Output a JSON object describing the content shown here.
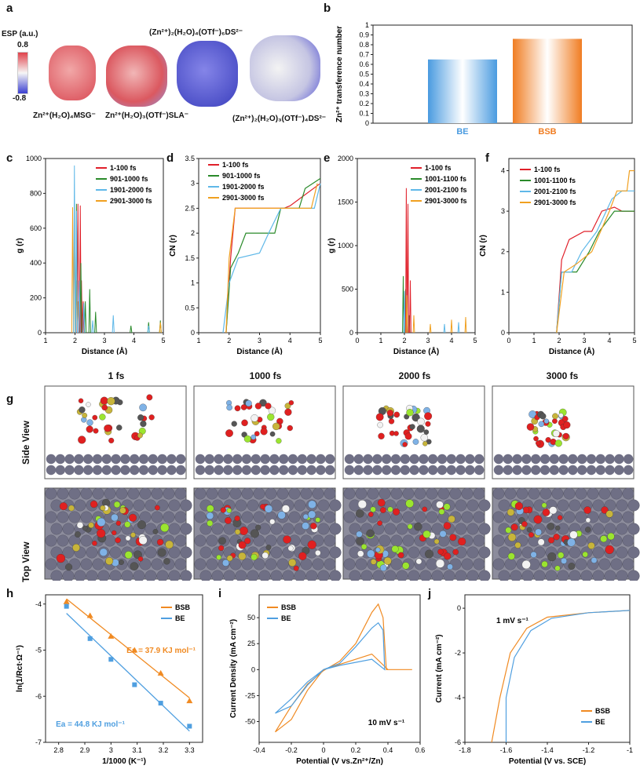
{
  "panel_letters": {
    "a": "a",
    "b": "b",
    "c": "c",
    "d": "d",
    "e": "e",
    "f": "f",
    "g": "g",
    "h": "h",
    "i": "i",
    "j": "j"
  },
  "panel_a": {
    "esp_title": "ESP (a.u.)",
    "esp_max": "0.8",
    "esp_min": "-0.8",
    "mol1": "Zn²⁺(H₂O)₄MSG⁻",
    "mol2": "Zn²⁺(H₂O)₃(OTf⁻)SLA⁻",
    "mol3": "(Zn²⁺)₂(H₂O)₄(OTf⁻)₆DS²⁻",
    "mol4": "(Zn²⁺)₂(H₂O)₃(OTf⁻)₄DS²⁻",
    "colors": {
      "positive": "#e0424b",
      "negative": "#3b3fd1",
      "neutral": "#f2f2f2"
    }
  },
  "panel_g": {
    "times": [
      "1 fs",
      "1000 fs",
      "2000 fs",
      "3000 fs"
    ],
    "side_view": "Side View",
    "top_view": "Top View",
    "colors": {
      "zinc": "#6f6f85",
      "oxygen": "#e02020",
      "sulfur": "#c8b53a",
      "carbon": "#555555",
      "fluorine": "#7fb2e6",
      "hydrogen": "#f2f2f2",
      "nitrogen": "#9be52f"
    }
  },
  "panel_h_annot": {
    "bsb": "Ea = 37.9 KJ mol⁻¹",
    "be": "Ea = 44.8 KJ mol⁻¹"
  },
  "panel_i_annot": "10 mV s⁻¹",
  "panel_j_annot": "1 mV s⁻¹",
  "chart_data": [
    {
      "id": "b",
      "type": "bar",
      "categories": [
        "BE",
        "BSB"
      ],
      "values": [
        0.65,
        0.86
      ],
      "ylabel": "Zn²⁺ transference number",
      "ylim": [
        0,
        1.0
      ],
      "yticks": [
        0,
        0.1,
        0.2,
        0.3,
        0.4,
        0.5,
        0.6,
        0.7,
        0.8,
        0.9,
        1.0
      ],
      "colors": [
        "#4a9be0",
        "#f07d22"
      ]
    },
    {
      "id": "c",
      "type": "line",
      "xlabel": "Distance (Å)",
      "ylabel": "g (r)",
      "xlim": [
        1,
        5
      ],
      "ylim": [
        0,
        1000
      ],
      "xticks": [
        1,
        2,
        3,
        4,
        5
      ],
      "yticks": [
        0,
        200,
        400,
        600,
        800,
        1000
      ],
      "series": [
        {
          "name": "1-100 fs",
          "color": "#e0202a"
        },
        {
          "name": "901-1000 fs",
          "color": "#2a8a2a"
        },
        {
          "name": "1901-2000 fs",
          "color": "#5fb8e8"
        },
        {
          "name": "2901-3000 fs",
          "color": "#f0a020"
        }
      ]
    },
    {
      "id": "d",
      "type": "line",
      "xlabel": "Distance (Å)",
      "ylabel": "CN (r)",
      "xlim": [
        1,
        5
      ],
      "ylim": [
        0,
        3.5
      ],
      "xticks": [
        1,
        2,
        3,
        4,
        5
      ],
      "yticks": [
        0.0,
        0.5,
        1.0,
        1.5,
        2.0,
        2.5,
        3.0,
        3.5
      ],
      "series": [
        {
          "name": "1-100 fs",
          "color": "#e0202a"
        },
        {
          "name": "901-1000 fs",
          "color": "#2a8a2a"
        },
        {
          "name": "1901-2000 fs",
          "color": "#5fb8e8"
        },
        {
          "name": "2901-3000 fs",
          "color": "#f0a020"
        }
      ]
    },
    {
      "id": "e",
      "type": "line",
      "xlabel": "Distance (Å)",
      "ylabel": "g (r)",
      "xlim": [
        0,
        5
      ],
      "ylim": [
        0,
        2000
      ],
      "xticks": [
        0,
        1,
        2,
        3,
        4,
        5
      ],
      "yticks": [
        0,
        500,
        1000,
        1500,
        2000
      ],
      "series": [
        {
          "name": "1-100 fs",
          "color": "#e0202a"
        },
        {
          "name": "1001-1100 fs",
          "color": "#2a8a2a"
        },
        {
          "name": "2001-2100 fs",
          "color": "#5fb8e8"
        },
        {
          "name": "2901-3000 fs",
          "color": "#f0a020"
        }
      ]
    },
    {
      "id": "f",
      "type": "line",
      "xlabel": "Distance (Å)",
      "ylabel": "CN (r)",
      "xlim": [
        0,
        5
      ],
      "ylim": [
        0,
        4.3
      ],
      "xticks": [
        0,
        1,
        2,
        3,
        4,
        5
      ],
      "yticks": [
        0,
        1,
        2,
        3,
        4
      ],
      "series": [
        {
          "name": "1-100 fs",
          "color": "#e0202a"
        },
        {
          "name": "1001-1100 fs",
          "color": "#2a8a2a"
        },
        {
          "name": "2001-2100 fs",
          "color": "#5fb8e8"
        },
        {
          "name": "2901-3000 fs",
          "color": "#f0a020"
        }
      ]
    },
    {
      "id": "h",
      "type": "scatter",
      "xlabel": "1/1000 (K⁻¹)",
      "ylabel": "ln(1/Rct·Ω⁻¹)",
      "xlim": [
        2.75,
        3.35
      ],
      "ylim": [
        -7,
        -3.8
      ],
      "xticks": [
        2.8,
        2.9,
        3.0,
        3.1,
        3.2,
        3.3
      ],
      "yticks": [
        -4,
        -5,
        -6,
        -7
      ],
      "series": [
        {
          "name": "BSB",
          "color": "#f08a22",
          "x": [
            2.83,
            2.92,
            3.0,
            3.09,
            3.19,
            3.3
          ],
          "y": [
            -3.95,
            -4.25,
            -4.7,
            -5.0,
            -5.5,
            -6.1
          ]
        },
        {
          "name": "BE",
          "color": "#4f9fe0",
          "x": [
            2.83,
            2.92,
            3.0,
            3.09,
            3.19,
            3.3
          ],
          "y": [
            -4.05,
            -4.75,
            -5.2,
            -5.75,
            -6.15,
            -6.65
          ]
        }
      ]
    },
    {
      "id": "i",
      "type": "line",
      "xlabel": "Potential (V vs.Zn²⁺/Zn)",
      "ylabel": "Current Density (mA cm⁻²)",
      "xlim": [
        -0.4,
        0.6
      ],
      "ylim": [
        -70,
        72
      ],
      "xticks": [
        -0.4,
        -0.2,
        0.0,
        0.2,
        0.4,
        0.6
      ],
      "yticks": [
        -50,
        -25,
        0,
        25,
        50
      ],
      "series": [
        {
          "name": "BSB",
          "color": "#f08a22"
        },
        {
          "name": "BE",
          "color": "#4f9fe0"
        }
      ]
    },
    {
      "id": "j",
      "type": "line",
      "xlabel": "Potential (V vs. SCE)",
      "ylabel": "Current (mA cm⁻²)",
      "xlim": [
        -1.8,
        -1.0
      ],
      "ylim": [
        -6,
        0.6
      ],
      "xticks": [
        -1.8,
        -1.6,
        -1.4,
        -1.2,
        -1.0
      ],
      "yticks": [
        -6,
        -4,
        -2,
        0
      ],
      "series": [
        {
          "name": "BSB",
          "color": "#f08a22"
        },
        {
          "name": "BE",
          "color": "#4f9fe0"
        }
      ]
    }
  ]
}
